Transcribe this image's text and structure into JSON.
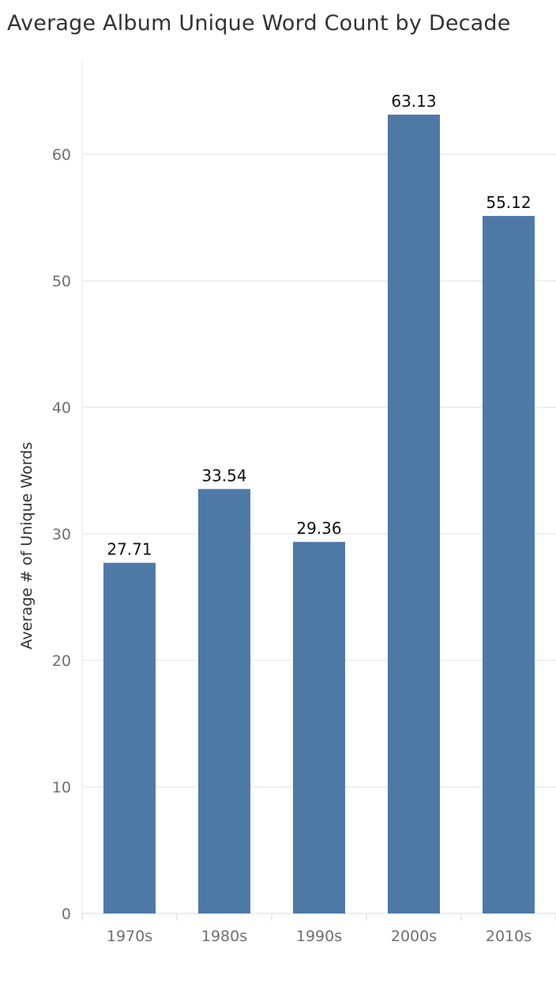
{
  "chart_data": {
    "type": "bar",
    "title": "Average Album Unique Word Count by Decade",
    "xlabel": "",
    "ylabel": "Average # of Unique Words",
    "categories": [
      "1970s",
      "1980s",
      "1990s",
      "2000s",
      "2010s"
    ],
    "values": [
      27.71,
      33.54,
      29.36,
      63.13,
      55.12
    ],
    "data_labels": [
      "27.71",
      "33.54",
      "29.36",
      "63.13",
      "55.12"
    ],
    "ylim": [
      0,
      67.5
    ],
    "yticks": [
      0,
      10,
      20,
      30,
      40,
      50,
      60
    ],
    "grid": true,
    "legend": "none",
    "bar_color": "#4e79a7",
    "gridline_color": "#ebebeb",
    "tick_label_color": "#6f6f6f"
  }
}
